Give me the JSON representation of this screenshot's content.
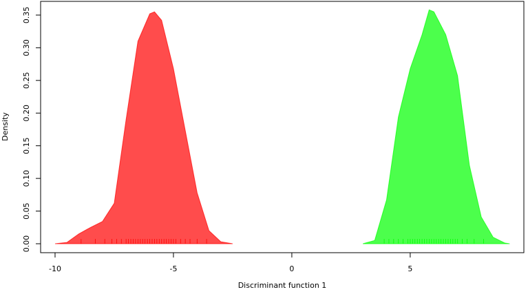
{
  "chart_data": {
    "type": "density",
    "x_label": "Discriminant function 1",
    "y_label": "Density",
    "xlim": [
      -10.61,
      9.8
    ],
    "ylim": [
      -0.0137,
      0.371
    ],
    "xticks": [
      -10,
      -5,
      0,
      5
    ],
    "yticks": [
      {
        "value": 0,
        "label": "0.00"
      },
      {
        "value": 0.05,
        "label": "0.05"
      },
      {
        "value": 0.1,
        "label": "0.10"
      },
      {
        "value": 0.15,
        "label": "0.15"
      },
      {
        "value": 0.2,
        "label": "0.20"
      },
      {
        "value": 0.25,
        "label": "0.25"
      },
      {
        "value": 0.3,
        "label": "0.30"
      },
      {
        "value": 0.35,
        "label": "0.35"
      }
    ],
    "series": [
      {
        "color": "#ff0000",
        "x": [
          -10,
          -9.5,
          -9,
          -8.5,
          -8,
          -7.5,
          -7,
          -6.5,
          -6,
          -5.8,
          -5.5,
          -5,
          -4.5,
          -4,
          -3.5,
          -3,
          -2.5
        ],
        "values": [
          0,
          0.002,
          0.015,
          0.025,
          0.034,
          0.062,
          0.19,
          0.31,
          0.352,
          0.355,
          0.342,
          0.268,
          0.173,
          0.078,
          0.02,
          0.003,
          0
        ],
        "rug": [
          -8.9,
          -8.3,
          -7.9,
          -7.6,
          -7.4,
          -7.2,
          -7.0,
          -6.9,
          -6.8,
          -6.7,
          -6.6,
          -6.5,
          -6.4,
          -6.3,
          -6.2,
          -6.1,
          -6.0,
          -5.9,
          -5.8,
          -5.7,
          -5.6,
          -5.5,
          -5.4,
          -5.3,
          -5.2,
          -5.1,
          -5.0,
          -4.9,
          -4.7,
          -4.5,
          -4.3,
          -4.0,
          -3.6
        ]
      },
      {
        "color": "#00ff00",
        "x": [
          3,
          3.5,
          4,
          4.5,
          5,
          5.5,
          5.8,
          6,
          6.5,
          7,
          7.5,
          8,
          8.5,
          9,
          9.2
        ],
        "values": [
          0,
          0.005,
          0.067,
          0.194,
          0.268,
          0.32,
          0.358,
          0.355,
          0.32,
          0.257,
          0.12,
          0.041,
          0.01,
          0.001,
          0
        ],
        "rug": [
          3.9,
          4.1,
          4.3,
          4.5,
          4.7,
          4.9,
          5.0,
          5.1,
          5.2,
          5.3,
          5.4,
          5.5,
          5.6,
          5.7,
          5.8,
          5.9,
          6.0,
          6.1,
          6.2,
          6.3,
          6.4,
          6.5,
          6.6,
          6.7,
          6.8,
          6.9,
          7.0,
          7.2,
          7.4,
          7.7,
          8.1
        ]
      }
    ]
  }
}
